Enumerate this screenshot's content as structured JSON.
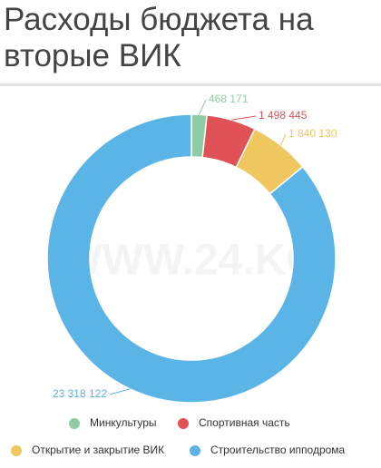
{
  "chart_data": {
    "type": "donut",
    "title": "Расходы бюджета на вторые ВИК",
    "watermark": "WWW.24.KG",
    "categories": [
      "Минкультуры",
      "Спортивная часть",
      "Открытие и закрытие ВИК",
      "Строительство ипподрома"
    ],
    "values": [
      468171,
      1498445,
      1840130,
      23318122
    ],
    "value_labels": [
      "468 171",
      "1 498 445",
      "1 840 130",
      "23 318 122"
    ],
    "colors": [
      "#8fcca6",
      "#e05255",
      "#f0c75e",
      "#5ab4e5"
    ]
  }
}
